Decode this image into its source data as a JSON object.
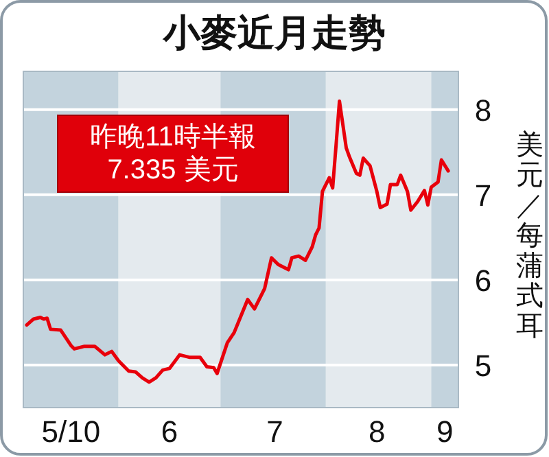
{
  "chart_data": {
    "type": "line",
    "title": "小麥近月走勢",
    "ylabel": "美元／每蒲式耳",
    "annotations": [
      "昨晚11時半報\n7.335 美元"
    ],
    "x": [
      "2010-05-05",
      "2010-05-07",
      "2010-05-09",
      "2010-05-10",
      "2010-05-11",
      "2010-05-12",
      "2010-05-15",
      "2010-05-18",
      "2010-05-19",
      "2010-05-22",
      "2010-05-25",
      "2010-05-28",
      "2010-05-30",
      "2010-06-01",
      "2010-06-04",
      "2010-06-06",
      "2010-06-08",
      "2010-06-10",
      "2010-06-12",
      "2010-06-14",
      "2010-06-16",
      "2010-06-19",
      "2010-06-22",
      "2010-06-25",
      "2010-06-27",
      "2010-06-29",
      "2010-06-30",
      "2010-07-03",
      "2010-07-05",
      "2010-07-09",
      "2010-07-11",
      "2010-07-14",
      "2010-07-16",
      "2010-07-18",
      "2010-07-21",
      "2010-07-22",
      "2010-07-24",
      "2010-07-26",
      "2010-07-28",
      "2010-07-29",
      "2010-07-30",
      "2010-07-31",
      "2010-08-02",
      "2010-08-03",
      "2010-08-04",
      "2010-08-05",
      "2010-08-07",
      "2010-08-08",
      "2010-08-10",
      "2010-08-11",
      "2010-08-12",
      "2010-08-14",
      "2010-08-16",
      "2010-08-17",
      "2010-08-19",
      "2010-08-20",
      "2010-08-22",
      "2010-08-23",
      "2010-08-25",
      "2010-08-26",
      "2010-08-28",
      "2010-08-30",
      "2010-08-31",
      "2010-09-01",
      "2010-09-03",
      "2010-09-04",
      "2010-09-06"
    ],
    "series": [
      {
        "color": "#e8000b",
        "values": [
          5.47,
          5.54,
          5.56,
          5.54,
          5.55,
          5.42,
          5.41,
          5.23,
          5.19,
          5.22,
          5.22,
          5.12,
          5.16,
          5.05,
          4.93,
          4.92,
          4.85,
          4.8,
          4.85,
          4.94,
          4.96,
          5.12,
          5.09,
          5.09,
          4.98,
          4.97,
          4.9,
          5.26,
          5.38,
          5.77,
          5.66,
          5.9,
          6.26,
          6.18,
          6.12,
          6.26,
          6.28,
          6.23,
          6.39,
          6.53,
          6.61,
          7.04,
          7.2,
          7.08,
          7.58,
          8.1,
          7.55,
          7.44,
          7.25,
          7.23,
          7.43,
          7.34,
          7.04,
          6.85,
          6.89,
          7.12,
          7.12,
          7.23,
          7.04,
          6.82,
          6.92,
          7.05,
          6.88,
          7.09,
          7.15,
          7.41,
          7.28
        ]
      }
    ],
    "xlim": [
      "2010-05-04",
      "2010-09-09"
    ],
    "xticks": [
      {
        "value": "2010-05-18",
        "label": "5/10"
      },
      {
        "value": "2010-06-16",
        "label": "6"
      },
      {
        "value": "2010-07-17",
        "label": "7"
      },
      {
        "value": "2010-08-16",
        "label": "8"
      },
      {
        "value": "2010-09-05",
        "label": "9"
      }
    ],
    "ylim": [
      4.5,
      8.45
    ],
    "yticks": [
      5,
      6,
      7,
      8
    ],
    "grid": "y",
    "marker": "none",
    "line_style": "solid",
    "bands": [
      {
        "axis": "x",
        "from": "2010-05-04",
        "to": "2010-06-01",
        "color": "#c3d3dd"
      },
      {
        "axis": "x",
        "from": "2010-06-01",
        "to": "2010-07-01",
        "color": "#e4eaee"
      },
      {
        "axis": "x",
        "from": "2010-07-01",
        "to": "2010-08-01",
        "color": "#c3d3dd"
      },
      {
        "axis": "x",
        "from": "2010-08-01",
        "to": "2010-09-01",
        "color": "#e4eaee"
      },
      {
        "axis": "x",
        "from": "2010-09-01",
        "to": "2010-09-09",
        "color": "#c3d3dd"
      }
    ]
  }
}
